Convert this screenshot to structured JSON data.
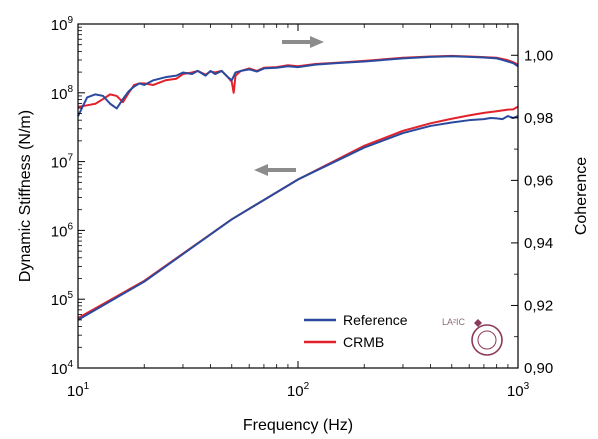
{
  "chart_data": {
    "type": "line",
    "xlabel": "Frequency (Hz)",
    "ylabel_left": "Dynamic Stiffness (N/m)",
    "ylabel_right": "Coherence",
    "x_scale": "log",
    "y_left_scale": "log",
    "xlim": [
      10,
      1000
    ],
    "ylim_left": [
      10000,
      1000000000
    ],
    "ylim_right": [
      0.9,
      1.01
    ],
    "x_tick_labels": [
      {
        "base": "10",
        "exp": "1"
      },
      {
        "base": "10",
        "exp": "2"
      },
      {
        "base": "10",
        "exp": "3"
      }
    ],
    "y_left_tick_labels": [
      {
        "base": "10",
        "exp": "4"
      },
      {
        "base": "10",
        "exp": "5"
      },
      {
        "base": "10",
        "exp": "6"
      },
      {
        "base": "10",
        "exp": "7"
      },
      {
        "base": "10",
        "exp": "8"
      },
      {
        "base": "10",
        "exp": "9"
      }
    ],
    "y_right_tick_labels": [
      "0,90",
      "0,92",
      "0,94",
      "0,96",
      "0,98",
      "1,00"
    ],
    "colors": {
      "Reference": "#2a4a9e",
      "CRMB": "#e3212b",
      "arrow": "#8c8c8c"
    },
    "legend": {
      "placement": "bottom-right",
      "entries": [
        "Reference",
        "CRMB"
      ]
    },
    "logo_text": "LA²IC",
    "annotations": [
      {
        "type": "arrow",
        "direction": "right",
        "meaning": "coherence curves use the right axis"
      },
      {
        "type": "arrow",
        "direction": "left",
        "meaning": "stiffness curves use the left axis"
      }
    ],
    "series": [
      {
        "name": "Reference",
        "axis": "left",
        "x": [
          10,
          20,
          50,
          100,
          200,
          300,
          400,
          500,
          600,
          700,
          750,
          800,
          850,
          900,
          950,
          1000
        ],
        "y": [
          50000,
          180000,
          1450000,
          5500000,
          16000000,
          26000000,
          33000000,
          37000000,
          40000000,
          41500000,
          43000000,
          42500000,
          41500000,
          46000000,
          43000000,
          46000000
        ]
      },
      {
        "name": "CRMB",
        "axis": "left",
        "x": [
          10,
          20,
          50,
          100,
          200,
          300,
          400,
          500,
          600,
          700,
          800,
          900,
          950,
          1000
        ],
        "y": [
          53000,
          185000,
          1450000,
          5500000,
          17000000,
          28000000,
          36000000,
          42000000,
          47000000,
          51000000,
          54000000,
          57000000,
          57500000,
          63000000
        ]
      },
      {
        "name": "Reference",
        "axis": "right",
        "x": [
          10,
          11,
          12,
          13,
          14,
          15,
          16,
          17,
          18,
          19,
          20,
          22,
          25,
          28,
          30,
          33,
          35,
          38,
          40,
          42,
          45,
          48,
          50,
          52,
          55,
          60,
          65,
          70,
          80,
          90,
          100,
          120,
          150,
          200,
          300,
          400,
          500,
          600,
          700,
          800,
          850,
          900,
          950,
          1000
        ],
        "y": [
          0.9805,
          0.9865,
          0.9875,
          0.987,
          0.9845,
          0.983,
          0.986,
          0.9885,
          0.99,
          0.991,
          0.9905,
          0.992,
          0.993,
          0.9935,
          0.9945,
          0.994,
          0.995,
          0.9935,
          0.995,
          0.994,
          0.995,
          0.993,
          0.992,
          0.9945,
          0.995,
          0.9955,
          0.9948,
          0.9958,
          0.996,
          0.9965,
          0.9962,
          0.997,
          0.9975,
          0.998,
          0.999,
          0.9995,
          0.9997,
          0.9995,
          0.9993,
          0.999,
          0.9985,
          0.998,
          0.9975,
          0.9965
        ]
      },
      {
        "name": "CRMB",
        "axis": "right",
        "x": [
          10,
          11,
          12,
          13,
          14,
          15,
          16,
          17,
          18,
          19,
          20,
          22,
          25,
          28,
          30,
          33,
          35,
          38,
          40,
          42,
          45,
          48,
          50,
          51,
          52,
          55,
          60,
          65,
          70,
          80,
          90,
          100,
          120,
          150,
          200,
          300,
          400,
          500,
          600,
          700,
          800,
          850,
          900,
          950,
          1000
        ],
        "y": [
          0.9835,
          0.984,
          0.9845,
          0.986,
          0.9875,
          0.987,
          0.985,
          0.988,
          0.9905,
          0.991,
          0.991,
          0.9905,
          0.992,
          0.9925,
          0.994,
          0.9945,
          0.995,
          0.9938,
          0.9948,
          0.9945,
          0.995,
          0.993,
          0.9915,
          0.988,
          0.9935,
          0.995,
          0.9958,
          0.995,
          0.996,
          0.9962,
          0.9968,
          0.9965,
          0.9972,
          0.9976,
          0.9982,
          0.9992,
          0.9996,
          0.9998,
          0.9996,
          0.9994,
          0.9992,
          0.9988,
          0.9984,
          0.9978,
          0.997
        ]
      }
    ]
  }
}
